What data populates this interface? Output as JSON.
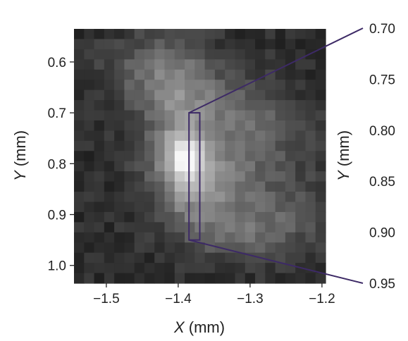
{
  "chart_data": {
    "type": "heatmap",
    "colormap": "grayscale",
    "xlabel": {
      "var": "X",
      "unit": " (mm)"
    },
    "ylabel": {
      "var": "Y",
      "unit": " (mm)"
    },
    "xlim": [
      -1.545,
      -1.195
    ],
    "ylim": [
      0.535,
      1.035
    ],
    "x_ticks": [
      {
        "value": -1.5,
        "label": "−1.5"
      },
      {
        "value": -1.4,
        "label": "−1.4"
      },
      {
        "value": -1.3,
        "label": "−1.3"
      },
      {
        "value": -1.2,
        "label": "−1.2"
      }
    ],
    "y_ticks": [
      {
        "value": 0.6,
        "label": "0.6"
      },
      {
        "value": 0.7,
        "label": "0.7"
      },
      {
        "value": 0.8,
        "label": "0.8"
      },
      {
        "value": 0.9,
        "label": "0.9"
      },
      {
        "value": 1.0,
        "label": "1.0"
      }
    ],
    "zoom_region": {
      "x": [
        -1.385,
        -1.37
      ],
      "y": [
        0.7,
        0.95
      ]
    },
    "zoom_axis": {
      "ylabel": {
        "var": "Y",
        "unit": " (mm)"
      },
      "range": [
        0.7,
        0.95
      ],
      "ticks": [
        {
          "value": 0.7,
          "label": "0.70"
        },
        {
          "value": 0.75,
          "label": "0.75"
        },
        {
          "value": 0.8,
          "label": "0.80"
        },
        {
          "value": 0.85,
          "label": "0.85"
        },
        {
          "value": 0.9,
          "label": "0.90"
        },
        {
          "value": 0.95,
          "label": "0.95"
        }
      ]
    },
    "grid": false,
    "highlight_color": "#3d2a66",
    "tick_color": "#222222"
  }
}
